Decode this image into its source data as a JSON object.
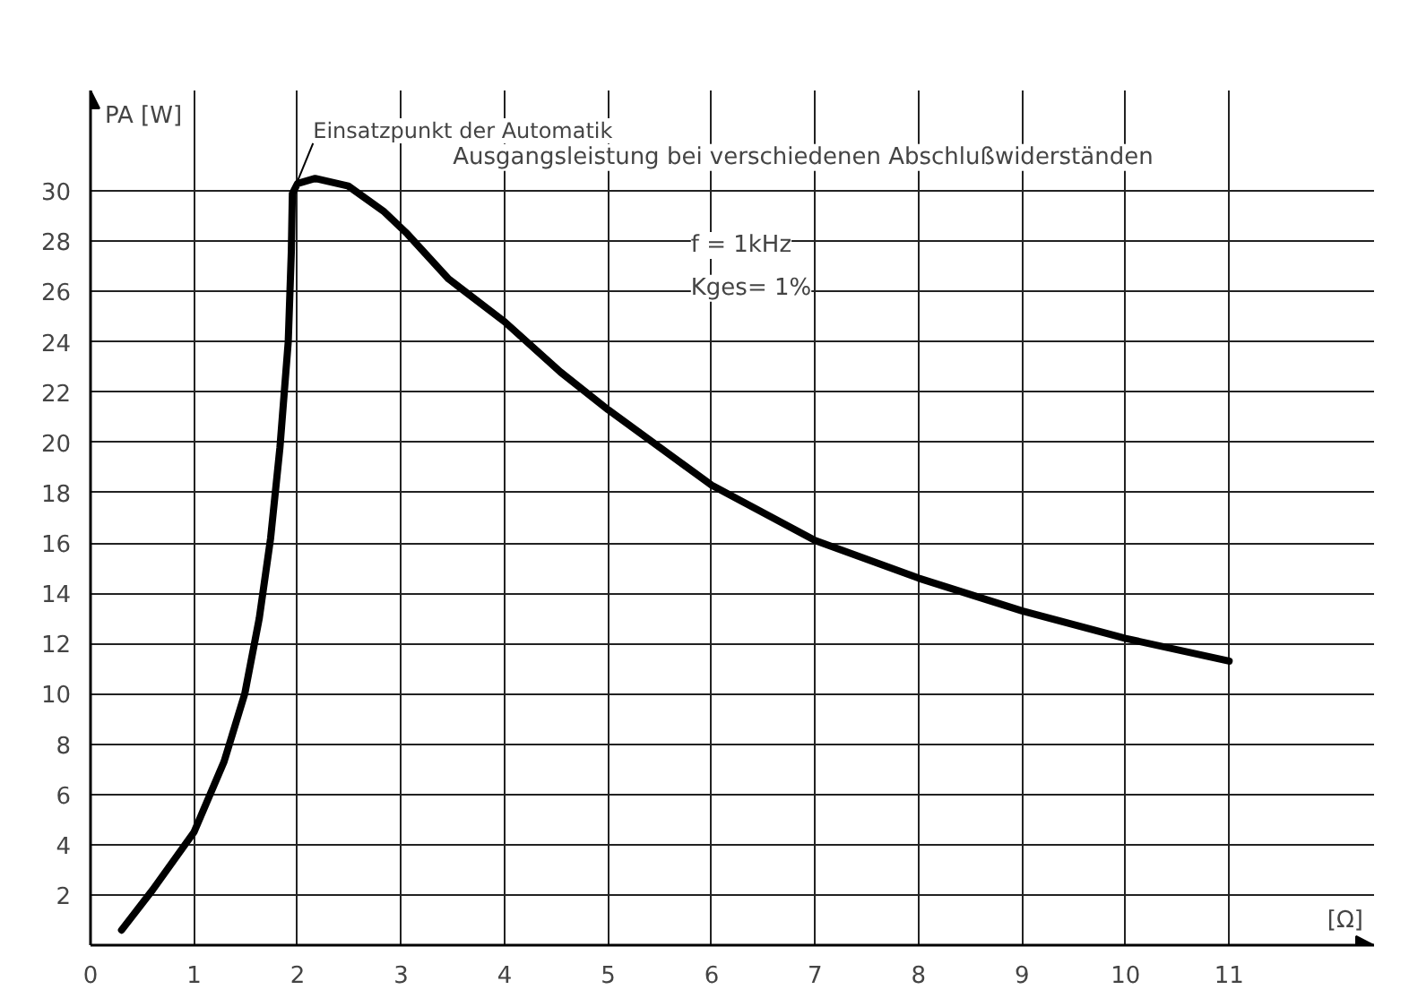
{
  "chart_data": {
    "type": "line",
    "title": "Ausgangsleistung bei verschiedenen Abschlußwiderständen",
    "xlabel": "[Ω]",
    "ylabel": "PA [W]",
    "annotations": [
      {
        "text": "Einsatzpunkt der Automatik",
        "x": 2,
        "y": 30
      },
      "f = 1kHz",
      "Kges= 1%"
    ],
    "series": [
      {
        "color": "#000000",
        "x": [
          0.3,
          0.6,
          1.0,
          1.29,
          1.49,
          1.63,
          1.74,
          1.83,
          1.91,
          1.94,
          1.95,
          2.0,
          2.17,
          2.49,
          2.83,
          3.06,
          3.46,
          4.0,
          4.54,
          5,
          6,
          7,
          8,
          9,
          10,
          11
        ],
        "values": [
          0.6,
          2.2,
          4.5,
          7.3,
          10.0,
          13.0,
          16.2,
          19.8,
          24.0,
          27.6,
          29.9,
          30.3,
          30.5,
          30.2,
          29.2,
          28.3,
          26.5,
          24.8,
          22.8,
          21.3,
          18.3,
          16.1,
          14.6,
          13.3,
          12.2,
          11.3
        ]
      }
    ],
    "xlim": [
      0,
      12.4
    ],
    "ylim": [
      0,
      34
    ],
    "xticks": [
      0,
      1,
      2,
      3,
      4,
      5,
      6,
      7,
      8,
      9,
      10,
      11
    ],
    "yticks": [
      2,
      4,
      6,
      8,
      10,
      12,
      14,
      16,
      18,
      20,
      22,
      24,
      26,
      28,
      30
    ],
    "grid": true,
    "marker": "none",
    "line_style": "solid"
  }
}
